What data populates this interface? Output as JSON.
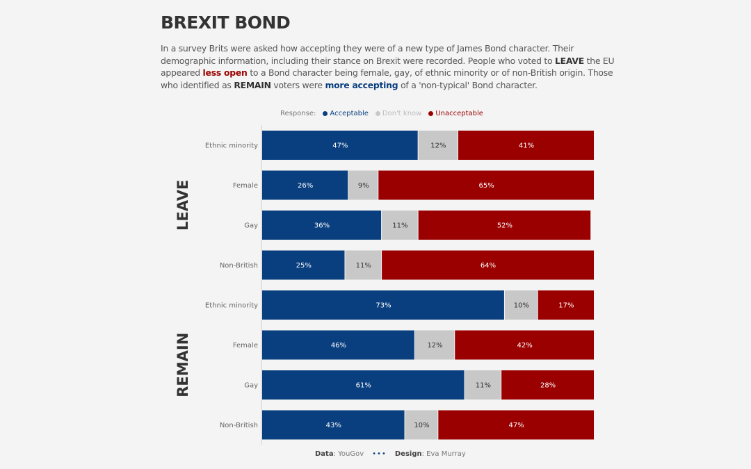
{
  "title": "BREXIT BOND",
  "description": {
    "p1": "In a survey Brits were asked how accepting they were of a new type of James Bond character. Their demographic information, including their stance on Brexit were recorded. People who voted to ",
    "leave": "LEAVE",
    "p2": " the EU appeared ",
    "less_open": "less open",
    "p3": " to a Bond character being female, gay, of ethnic minority or of non-British origin. Those who identified as ",
    "remain": "REMAIN",
    "p4": " voters were ",
    "more_accepting": "more accepting",
    "p5": " of a 'non-typical' Bond character."
  },
  "legend": {
    "label": "Response:",
    "items": [
      "Acceptable",
      "Don't know",
      "Unacceptable"
    ]
  },
  "colors": {
    "Acceptable": "#0a3f7f",
    "Don't know": "#c8c8c8",
    "Unacceptable": "#9b0000"
  },
  "chart_data": {
    "type": "bar",
    "stacked": true,
    "orientation": "horizontal",
    "xlim": [
      0,
      100
    ],
    "groups": [
      "LEAVE",
      "REMAIN"
    ],
    "categories": [
      "Ethnic minority",
      "Female",
      "Gay",
      "Non-British"
    ],
    "series": [
      {
        "name": "Acceptable",
        "leave": [
          47,
          26,
          36,
          25
        ],
        "remain": [
          73,
          46,
          61,
          43
        ]
      },
      {
        "name": "Don't know",
        "leave": [
          12,
          9,
          11,
          11
        ],
        "remain": [
          10,
          12,
          11,
          10
        ]
      },
      {
        "name": "Unacceptable",
        "leave": [
          41,
          65,
          52,
          64
        ],
        "remain": [
          17,
          42,
          28,
          47
        ]
      }
    ]
  },
  "footer": {
    "data_label": "Data",
    "data_value": ": YouGov",
    "design_label": "Design",
    "design_value": ": Eva Murray"
  }
}
